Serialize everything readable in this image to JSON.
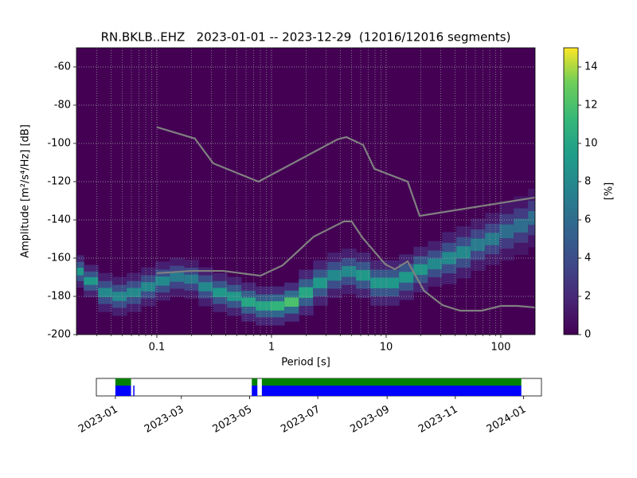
{
  "chart_data": [
    {
      "type": "ppsd",
      "title": "RN.BKLB..EHZ   2023-01-01 -- 2023-12-29  (12016/12016 segments)",
      "xlabel": "Period [s]",
      "ylabel": "Amplitude [m²/s⁴/Hz] [dB]",
      "log_x": true,
      "grid": true,
      "xlim": [
        0.0199,
        199
      ],
      "ylim": [
        -200,
        -50
      ],
      "xticks": [
        0.1,
        1,
        10,
        100
      ],
      "xminorticks": [
        0.02,
        0.03,
        0.04,
        0.05,
        0.06,
        0.07,
        0.08,
        0.09,
        0.2,
        0.3,
        0.4,
        0.5,
        0.6,
        0.7,
        0.8,
        0.9,
        2,
        3,
        4,
        5,
        6,
        7,
        8,
        9,
        20,
        30,
        40,
        50,
        60,
        70,
        80,
        90
      ],
      "yticks": [
        -200,
        -180,
        -160,
        -140,
        -120,
        -100,
        -80,
        -60
      ],
      "background": "#440154",
      "density": {
        "x": [
          0.02,
          0.0266,
          0.0355,
          0.0473,
          0.0631,
          0.0841,
          0.112,
          0.15,
          0.2,
          0.266,
          0.355,
          0.473,
          0.631,
          0.841,
          1.12,
          1.5,
          2.0,
          2.66,
          3.55,
          4.73,
          6.31,
          8.41,
          11.2,
          15,
          20,
          26.6,
          35.5,
          47.3,
          63.1,
          84.1,
          112,
          150,
          199
        ],
        "center": [
          -167,
          -172,
          -178,
          -180,
          -178,
          -175,
          -172,
          -170,
          -171,
          -175,
          -178,
          -180,
          -183,
          -185,
          -185,
          -183,
          -178,
          -173,
          -169,
          -167,
          -169,
          -173,
          -173,
          -170,
          -166,
          -163,
          -160,
          -157,
          -153,
          -150,
          -146,
          -143,
          -139
        ],
        "spread": [
          5,
          5,
          6,
          6,
          6,
          6,
          6,
          6,
          6,
          6,
          6,
          6,
          6,
          6,
          6,
          6,
          7,
          7,
          7,
          7,
          7,
          7,
          7,
          7,
          7,
          7,
          8,
          8,
          8,
          8,
          9,
          9,
          9
        ],
        "peak": [
          9,
          9,
          8,
          8,
          8,
          8,
          8,
          7,
          7,
          8,
          9,
          9,
          10,
          10,
          11,
          12,
          10,
          9,
          8,
          8,
          9,
          9,
          9,
          9,
          9,
          8,
          8,
          8,
          7,
          7,
          6,
          6,
          6
        ]
      },
      "series": [
        {
          "color": "#808080",
          "x": [
            0.1,
            0.215,
            0.31,
            0.77,
            3.77,
            4.5,
            6.3,
            7.9,
            15.4,
            19.6,
            199
          ],
          "values": [
            -91.5,
            -97.5,
            -110.4,
            -120,
            -97.9,
            -96.7,
            -100.8,
            -113.3,
            -120,
            -137.9,
            -128.3
          ]
        },
        {
          "color": "#808080",
          "x": [
            0.1,
            0.2,
            0.38,
            0.8,
            1.25,
            2.33,
            4.28,
            5.0,
            6.2,
            9.85,
            11.9,
            15.4,
            21.4,
            31,
            44.3,
            68,
            100,
            140,
            199
          ],
          "values": [
            -167.9,
            -166.7,
            -166.7,
            -169.2,
            -163.8,
            -148.8,
            -140.8,
            -140.8,
            -149.2,
            -163.3,
            -165.8,
            -161.7,
            -177.1,
            -184.6,
            -187.5,
            -187.5,
            -185,
            -185,
            -185.8
          ]
        }
      ],
      "colorbar": {
        "label": "[%]",
        "lim": [
          0,
          15
        ],
        "ticks": [
          0,
          2,
          4,
          6,
          8,
          10,
          12,
          14
        ]
      }
    },
    {
      "type": "coverage",
      "xlim": [
        -17,
        381
      ],
      "xticks": [
        {
          "value": 0,
          "label": "2023-01"
        },
        {
          "value": 59,
          "label": "2023-03"
        },
        {
          "value": 120,
          "label": "2023-05"
        },
        {
          "value": 181,
          "label": "2023-07"
        },
        {
          "value": 243,
          "label": "2023-09"
        },
        {
          "value": 304,
          "label": "2023-11"
        },
        {
          "value": 365,
          "label": "2024-01"
        }
      ],
      "series": [
        {
          "color": "#008000",
          "start": [
            0,
            122,
            131
          ],
          "end": [
            14,
            127,
            363
          ]
        },
        {
          "color": "#0000ff",
          "start": [
            0,
            16,
            122,
            131
          ],
          "end": [
            14,
            17,
            127,
            363
          ]
        }
      ]
    }
  ]
}
